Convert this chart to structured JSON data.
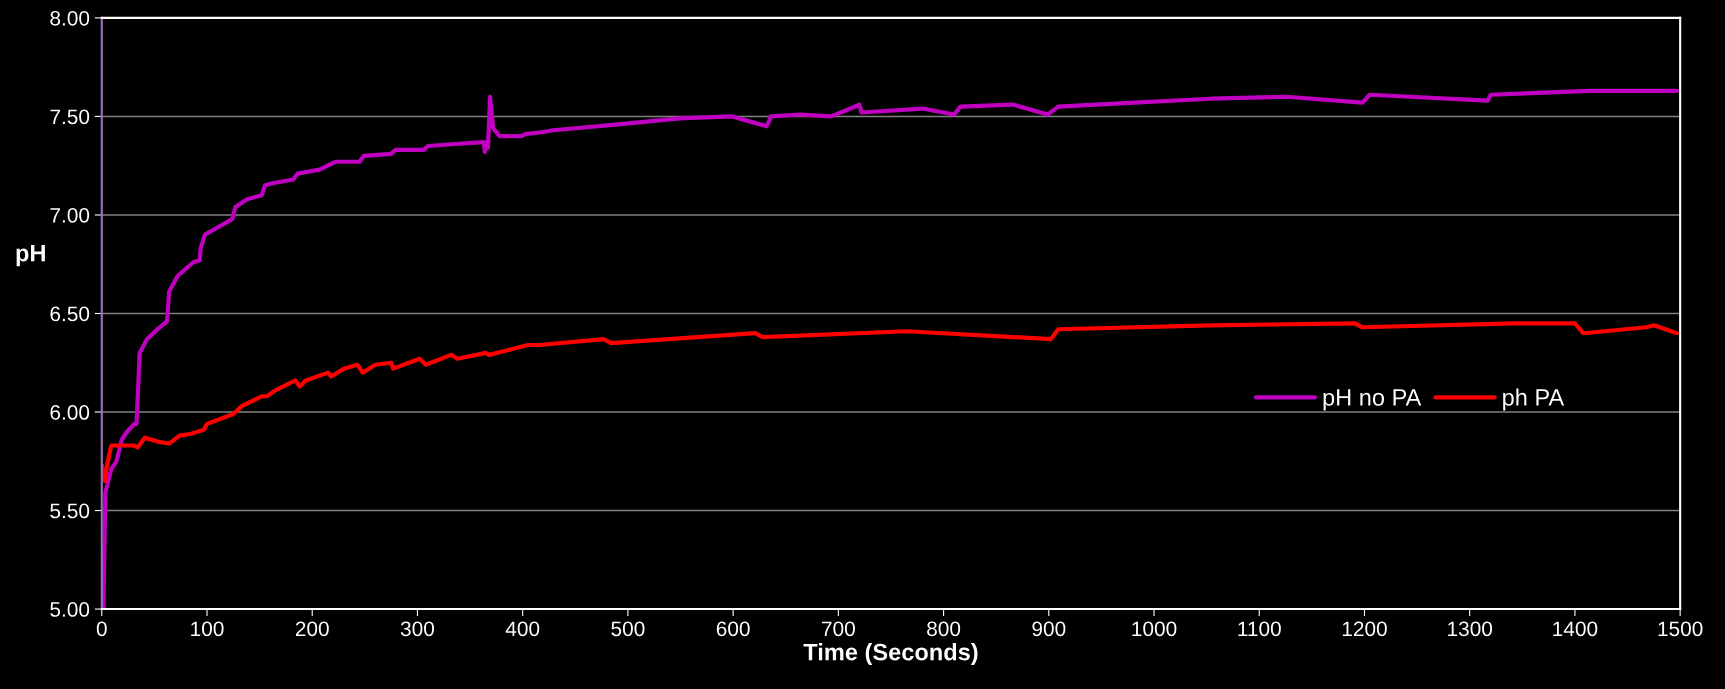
{
  "chart_data": {
    "type": "line",
    "xlabel": "Time (Seconds)",
    "ylabel": "pH",
    "xlim": [
      0,
      1500
    ],
    "xticks": [
      0,
      100,
      200,
      300,
      400,
      500,
      600,
      700,
      800,
      900,
      1000,
      1100,
      1200,
      1300,
      1400,
      1500
    ],
    "ylim": [
      5,
      8
    ],
    "yticks": [
      {
        "value": 5,
        "label": "5.00"
      },
      {
        "value": 5.5,
        "label": "5.50"
      },
      {
        "value": 6,
        "label": "6.00"
      },
      {
        "value": 6.5,
        "label": "6.50"
      },
      {
        "value": 7,
        "label": "7.00"
      },
      {
        "value": 7.5,
        "label": "7.50"
      },
      {
        "value": 8,
        "label": "8.00"
      }
    ],
    "grid": "y",
    "legend": "lower right",
    "marker": "none",
    "line_style": "solid",
    "series": [
      {
        "name": "pH no PA",
        "color": "#c000c0",
        "x": [
          1.5,
          3.4,
          9,
          14,
          19,
          24,
          31,
          33,
          36,
          43,
          53,
          62,
          64,
          72,
          87,
          93,
          94,
          98,
          108,
          121,
          124,
          127,
          138,
          152,
          155,
          161,
          182,
          186,
          207,
          222,
          245,
          249,
          275,
          279,
          306,
          310,
          336,
          363,
          364,
          366,
          367,
          369,
          372,
          378,
          399,
          402,
          418,
          429,
          491,
          549,
          599,
          632,
          636,
          664,
          693,
          707,
          720,
          722,
          780,
          810,
          816,
          866,
          899,
          909,
          981,
          1054,
          1126,
          1198,
          1205,
          1317,
          1320,
          1414,
          1497
        ],
        "values": [
          5.0,
          5.59,
          5.71,
          5.75,
          5.86,
          5.9,
          5.94,
          5.94,
          6.3,
          6.37,
          6.42,
          6.46,
          6.61,
          6.69,
          6.76,
          6.77,
          6.83,
          6.9,
          6.93,
          6.97,
          6.98,
          7.04,
          7.08,
          7.1,
          7.15,
          7.16,
          7.18,
          7.21,
          7.23,
          7.27,
          7.27,
          7.3,
          7.31,
          7.33,
          7.33,
          7.35,
          7.36,
          7.37,
          7.32,
          7.37,
          7.34,
          7.6,
          7.44,
          7.4,
          7.4,
          7.41,
          7.42,
          7.43,
          7.46,
          7.49,
          7.5,
          7.45,
          7.5,
          7.51,
          7.5,
          7.53,
          7.56,
          7.52,
          7.54,
          7.51,
          7.55,
          7.56,
          7.51,
          7.55,
          7.57,
          7.59,
          7.6,
          7.57,
          7.61,
          7.58,
          7.61,
          7.63,
          7.63
        ]
      },
      {
        "name": "ph PA",
        "color": "#ff0000",
        "x": [
          0,
          3,
          5,
          9,
          31,
          34,
          41,
          53,
          64,
          74,
          85,
          97,
          100,
          125,
          133,
          152,
          157,
          165,
          184,
          188,
          194,
          215,
          218,
          230,
          243,
          248,
          260,
          275,
          277,
          302,
          308,
          332,
          338,
          365,
          368,
          405,
          416,
          477,
          484,
          621,
          628,
          765,
          902,
          909,
          1054,
          1191,
          1198,
          1342,
          1400,
          1408,
          1468,
          1475,
          1497
        ],
        "values": [
          5.73,
          5.65,
          5.73,
          5.83,
          5.83,
          5.82,
          5.87,
          5.85,
          5.84,
          5.88,
          5.89,
          5.91,
          5.94,
          5.99,
          6.03,
          6.08,
          6.08,
          6.11,
          6.16,
          6.13,
          6.16,
          6.2,
          6.18,
          6.22,
          6.24,
          6.2,
          6.24,
          6.25,
          6.22,
          6.27,
          6.24,
          6.29,
          6.27,
          6.3,
          6.29,
          6.34,
          6.34,
          6.37,
          6.35,
          6.4,
          6.38,
          6.41,
          6.37,
          6.42,
          6.44,
          6.45,
          6.43,
          6.45,
          6.45,
          6.4,
          6.43,
          6.44,
          6.4
        ]
      }
    ]
  }
}
